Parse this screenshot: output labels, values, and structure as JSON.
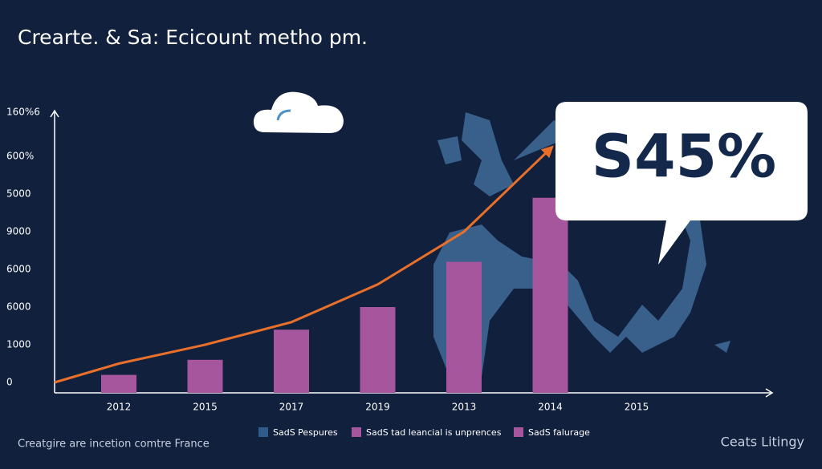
{
  "chart_data": {
    "type": "bar",
    "title": "Crearte. & Sa: Ecicount metho pm.",
    "y_axis_labels": [
      "0",
      "1000",
      "6000",
      "6000",
      "9000",
      "5000",
      "600%",
      "160%6"
    ],
    "categories": [
      "2012",
      "2015",
      "2017",
      "2019",
      "2013",
      "2014",
      "2015"
    ],
    "ylim": [
      0,
      7
    ],
    "series": [
      {
        "name": "SadS Pespures",
        "color": "#2f5b8c",
        "values": [
          null,
          null,
          null,
          null,
          null,
          null,
          null
        ]
      },
      {
        "name": "SadS tad leancial is unprences",
        "color": "#a6569c",
        "values": [
          0.2,
          0.6,
          1.4,
          2.0,
          3.2,
          4.9,
          null
        ]
      },
      {
        "name": "SadS falurage",
        "color": "#a6569c",
        "line_color": "#e8702a",
        "values": [
          0.5,
          1.0,
          1.6,
          2.6,
          4.0,
          6.2,
          null
        ]
      }
    ],
    "annotation": "S45%",
    "footer_left": "Creatgire are incetion comtre France",
    "footer_right": "Ceats Litingy"
  }
}
